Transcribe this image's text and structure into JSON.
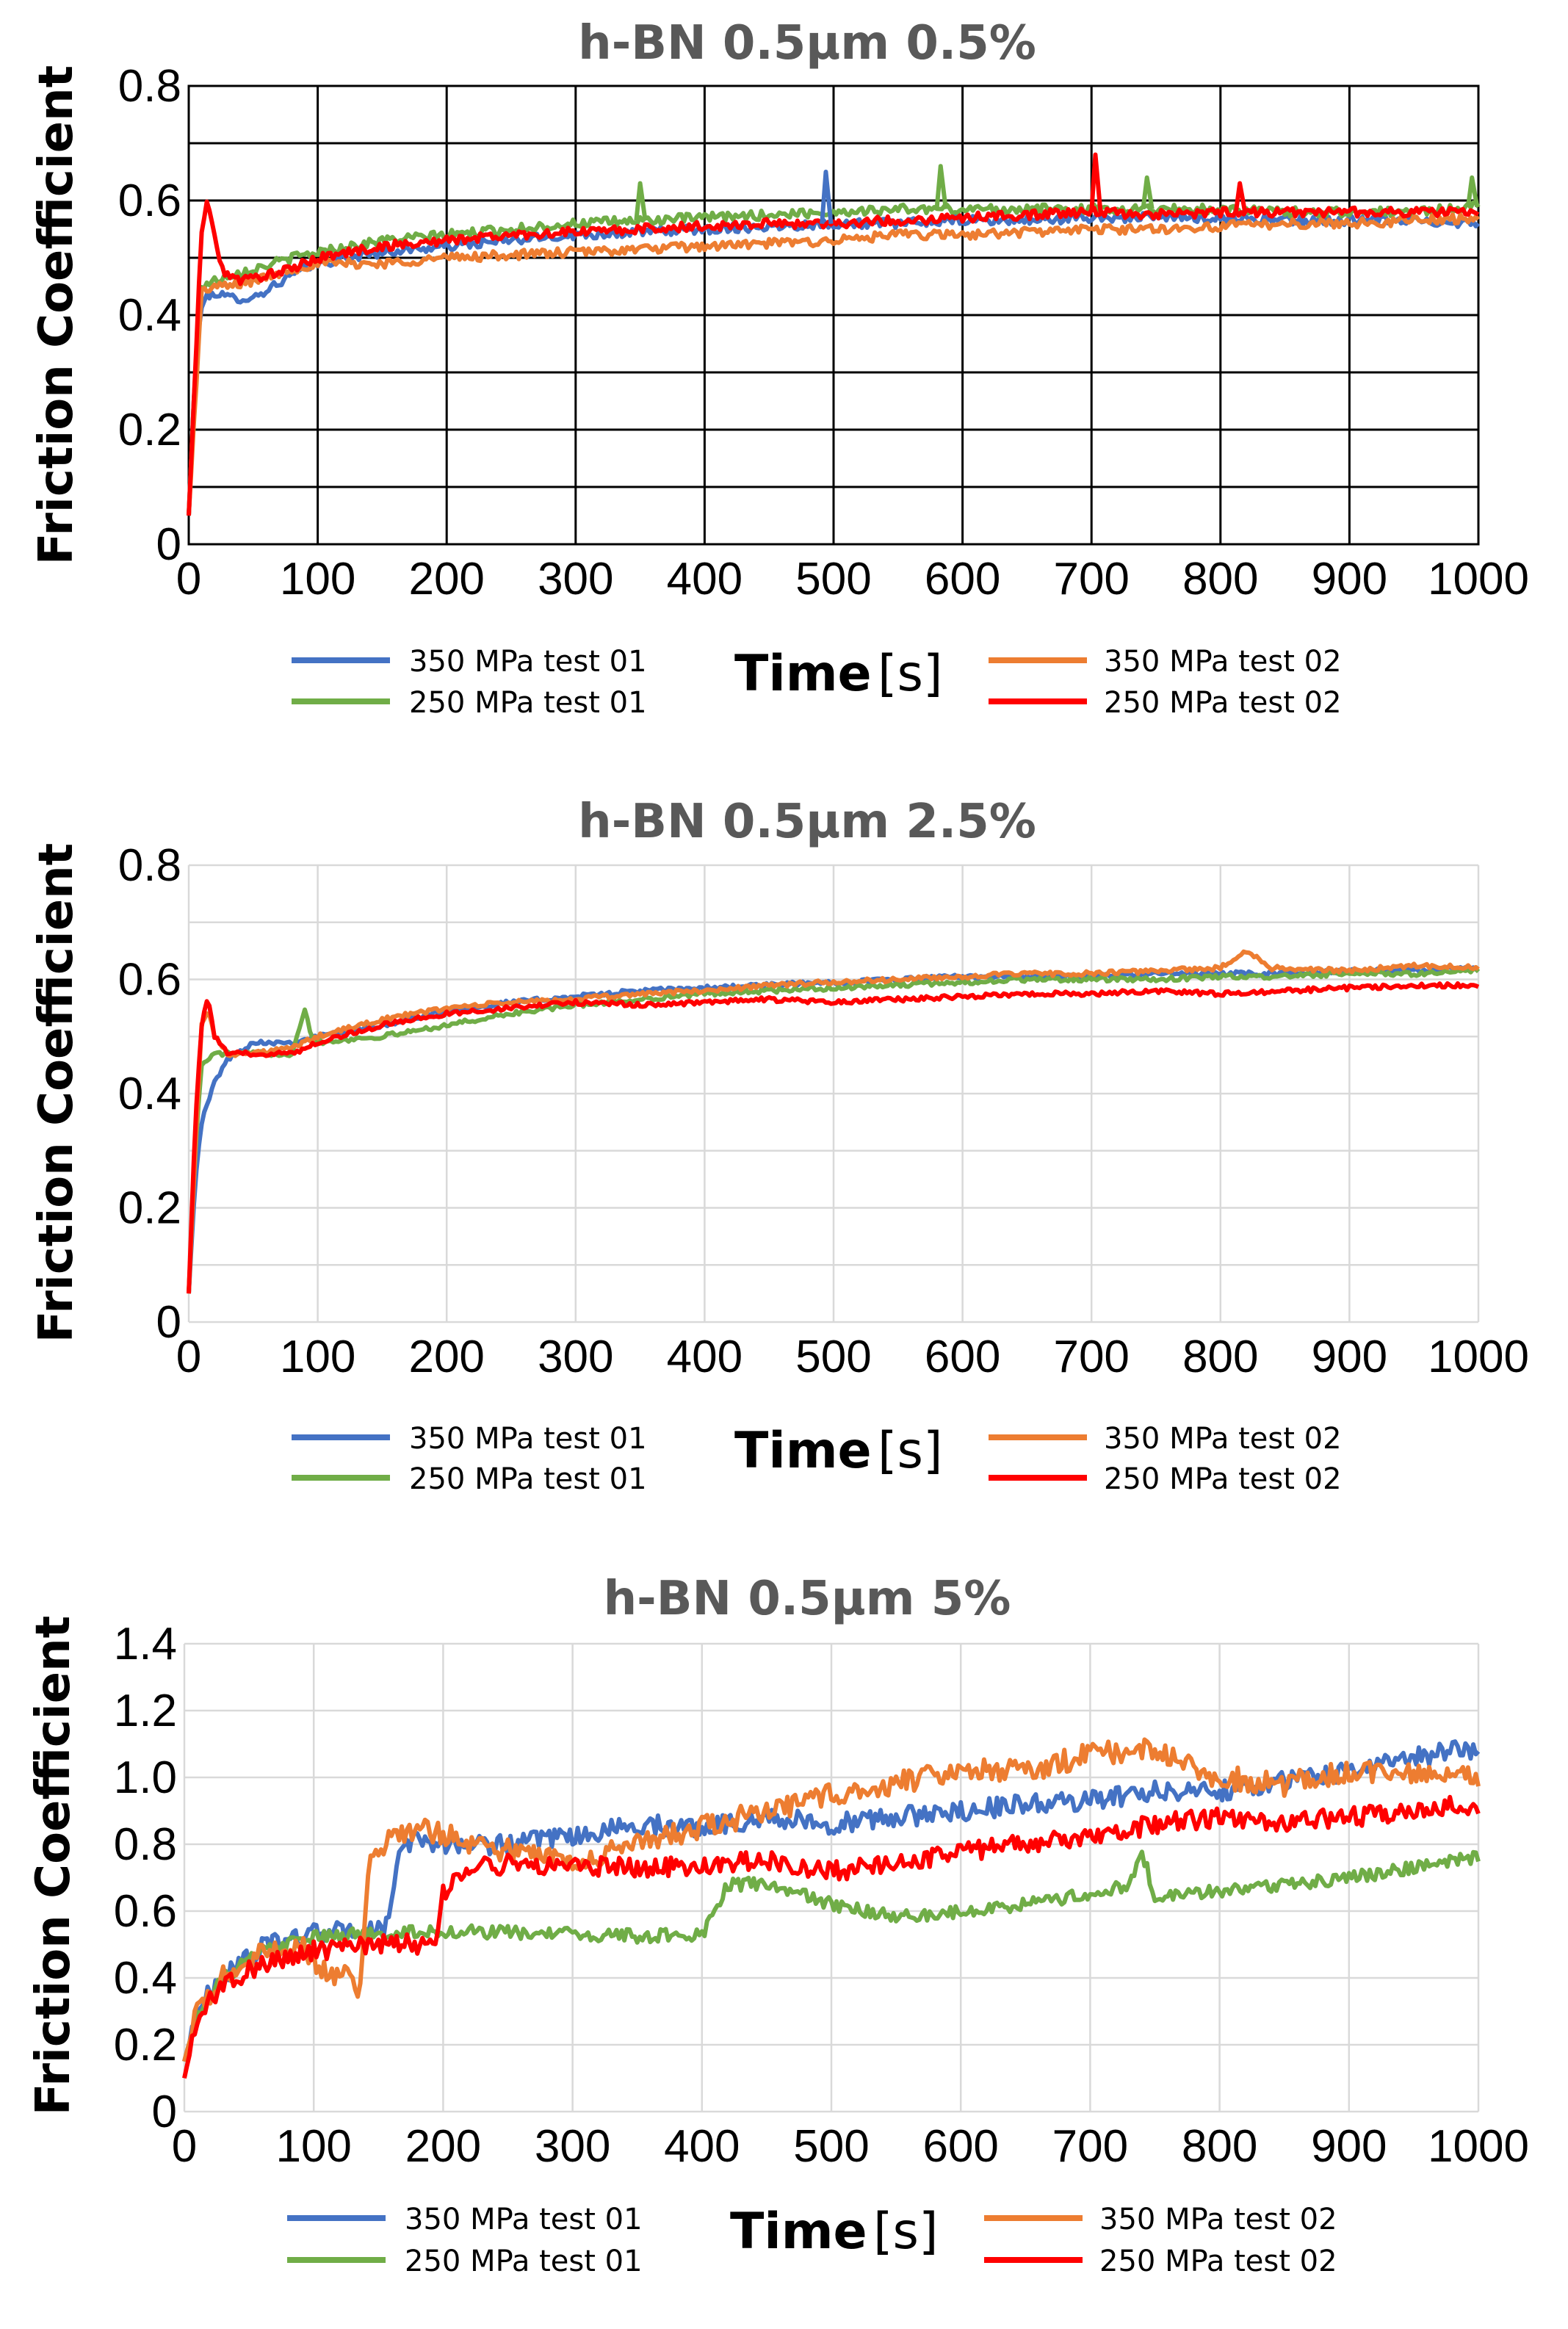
{
  "colors": {
    "series_blue": "#4472C4",
    "series_green": "#70AD47",
    "series_orange": "#ED7D31",
    "series_red": "#FF0000",
    "title_gray": "#595959",
    "grid_black": "#000000",
    "grid_light": "#D9D9D9"
  },
  "chart_data": [
    {
      "type": "line",
      "title": "h-BN 0.5µm 0.5%",
      "ylabel": "Friction Coefficient",
      "xlabel_main": "Time",
      "xlabel_unit": "[s]",
      "xlim": [
        0,
        1000
      ],
      "ylim": [
        0,
        0.8
      ],
      "xticks": [
        0,
        100,
        200,
        300,
        400,
        500,
        600,
        700,
        800,
        900,
        1000
      ],
      "xtick_labels": [
        "0",
        "100",
        "200",
        "300",
        "400",
        "500",
        "600",
        "700",
        "800",
        "900",
        "1000"
      ],
      "yticks": [
        0,
        0.2,
        0.4,
        0.6,
        0.8
      ],
      "ytick_labels": [
        "0",
        "0.2",
        "0.4",
        "0.6",
        "0.8"
      ],
      "ygrid": [
        0,
        0.1,
        0.2,
        0.3,
        0.4,
        0.5,
        0.6,
        0.7,
        0.8
      ],
      "grid_style": "black",
      "legend": [
        {
          "label": "350 MPa test 01",
          "color": "#4472C4"
        },
        {
          "label": "250 MPa test 01",
          "color": "#70AD47"
        },
        {
          "label": "350 MPa test 02",
          "color": "#ED7D31"
        },
        {
          "label": "250 MPa test 02",
          "color": "#FF0000"
        }
      ],
      "series": [
        {
          "name": "350 MPa test 01",
          "color": "#4472C4",
          "x": [
            0,
            5,
            10,
            20,
            30,
            50,
            80,
            100,
            150,
            200,
            250,
            300,
            350,
            400,
            450,
            500,
            550,
            600,
            650,
            700,
            750,
            800,
            850,
            900,
            950,
            1000
          ],
          "y": [
            0.05,
            0.3,
            0.42,
            0.44,
            0.43,
            0.43,
            0.47,
            0.49,
            0.51,
            0.52,
            0.53,
            0.54,
            0.545,
            0.55,
            0.555,
            0.56,
            0.56,
            0.565,
            0.565,
            0.57,
            0.57,
            0.57,
            0.565,
            0.565,
            0.565,
            0.56
          ],
          "noise": 0.008
        },
        {
          "name": "250 MPa test 01",
          "color": "#70AD47",
          "x": [
            0,
            5,
            10,
            20,
            30,
            50,
            80,
            100,
            150,
            200,
            250,
            300,
            350,
            400,
            450,
            500,
            550,
            600,
            650,
            700,
            750,
            800,
            850,
            900,
            950,
            1000
          ],
          "y": [
            0.05,
            0.3,
            0.45,
            0.46,
            0.47,
            0.48,
            0.5,
            0.51,
            0.53,
            0.54,
            0.55,
            0.56,
            0.565,
            0.57,
            0.575,
            0.58,
            0.585,
            0.585,
            0.585,
            0.585,
            0.585,
            0.585,
            0.58,
            0.58,
            0.58,
            0.59
          ],
          "noise": 0.008
        },
        {
          "name": "350 MPa test 02",
          "color": "#ED7D31",
          "x": [
            0,
            5,
            10,
            20,
            30,
            50,
            80,
            100,
            150,
            200,
            250,
            300,
            350,
            400,
            450,
            500,
            550,
            600,
            650,
            700,
            750,
            800,
            850,
            900,
            950,
            1000
          ],
          "y": [
            0.05,
            0.25,
            0.44,
            0.45,
            0.45,
            0.46,
            0.48,
            0.49,
            0.49,
            0.5,
            0.505,
            0.51,
            0.515,
            0.52,
            0.525,
            0.53,
            0.54,
            0.54,
            0.545,
            0.55,
            0.55,
            0.555,
            0.56,
            0.56,
            0.565,
            0.57
          ],
          "noise": 0.008
        },
        {
          "name": "250 MPa test 02",
          "color": "#FF0000",
          "x": [
            0,
            5,
            10,
            15,
            25,
            40,
            60,
            80,
            100,
            150,
            200,
            250,
            300,
            350,
            400,
            450,
            500,
            550,
            600,
            650,
            700,
            750,
            800,
            850,
            900,
            950,
            1000
          ],
          "y": [
            0.05,
            0.3,
            0.55,
            0.6,
            0.48,
            0.46,
            0.47,
            0.48,
            0.5,
            0.52,
            0.53,
            0.54,
            0.545,
            0.55,
            0.555,
            0.56,
            0.56,
            0.565,
            0.57,
            0.575,
            0.58,
            0.575,
            0.58,
            0.58,
            0.58,
            0.58,
            0.58
          ],
          "noise": 0.008
        }
      ],
      "annotations": [
        {
          "series": 3,
          "x": 703,
          "y": 0.68
        },
        {
          "series": 3,
          "x": 815,
          "y": 0.63
        },
        {
          "series": 1,
          "x": 583,
          "y": 0.66
        },
        {
          "series": 1,
          "x": 743,
          "y": 0.64
        },
        {
          "series": 1,
          "x": 350,
          "y": 0.63
        },
        {
          "series": 0,
          "x": 494,
          "y": 0.65
        },
        {
          "series": 1,
          "x": 995,
          "y": 0.64
        }
      ]
    },
    {
      "type": "line",
      "title": "h-BN 0.5µm 2.5%",
      "ylabel": "Friction Coefficient",
      "xlabel_main": "Time",
      "xlabel_unit": "[s]",
      "xlim": [
        0,
        1000
      ],
      "ylim": [
        0,
        0.8
      ],
      "xticks": [
        0,
        100,
        200,
        300,
        400,
        500,
        600,
        700,
        800,
        900,
        1000
      ],
      "xtick_labels": [
        "0",
        "100",
        "200",
        "300",
        "400",
        "500",
        "600",
        "700",
        "800",
        "900",
        "1000"
      ],
      "yticks": [
        0,
        0.2,
        0.4,
        0.6,
        0.8
      ],
      "ytick_labels": [
        "0",
        "0.2",
        "0.4",
        "0.6",
        "0.8"
      ],
      "ygrid": [
        0,
        0.1,
        0.2,
        0.3,
        0.4,
        0.5,
        0.6,
        0.7,
        0.8
      ],
      "grid_style": "light",
      "legend": [
        {
          "label": "350 MPa test 01",
          "color": "#4472C4"
        },
        {
          "label": "250 MPa test 01",
          "color": "#70AD47"
        },
        {
          "label": "350 MPa test 02",
          "color": "#ED7D31"
        },
        {
          "label": "250 MPa test 02",
          "color": "#FF0000"
        }
      ],
      "series": [
        {
          "name": "350 MPa test 01",
          "color": "#4472C4",
          "x": [
            0,
            5,
            10,
            20,
            30,
            50,
            80,
            100,
            150,
            200,
            250,
            300,
            350,
            400,
            450,
            500,
            550,
            600,
            650,
            700,
            750,
            800,
            850,
            900,
            950,
            1000
          ],
          "y": [
            0.05,
            0.25,
            0.35,
            0.42,
            0.46,
            0.49,
            0.49,
            0.5,
            0.52,
            0.545,
            0.56,
            0.57,
            0.58,
            0.585,
            0.59,
            0.595,
            0.6,
            0.605,
            0.605,
            0.605,
            0.61,
            0.61,
            0.61,
            0.615,
            0.615,
            0.62
          ],
          "noise": 0.004
        },
        {
          "name": "250 MPa test 01",
          "color": "#70AD47",
          "x": [
            0,
            5,
            10,
            20,
            30,
            50,
            80,
            90,
            95,
            100,
            150,
            200,
            250,
            300,
            350,
            400,
            450,
            500,
            550,
            600,
            650,
            700,
            750,
            800,
            850,
            900,
            950,
            1000
          ],
          "y": [
            0.05,
            0.3,
            0.45,
            0.47,
            0.47,
            0.47,
            0.47,
            0.55,
            0.5,
            0.49,
            0.5,
            0.52,
            0.54,
            0.555,
            0.565,
            0.575,
            0.58,
            0.585,
            0.59,
            0.595,
            0.6,
            0.6,
            0.6,
            0.605,
            0.605,
            0.61,
            0.61,
            0.615
          ],
          "noise": 0.004
        },
        {
          "name": "350 MPa test 02",
          "color": "#ED7D31",
          "x": [
            0,
            5,
            10,
            15,
            20,
            30,
            50,
            80,
            100,
            150,
            200,
            250,
            300,
            350,
            400,
            450,
            500,
            550,
            600,
            650,
            700,
            750,
            800,
            820,
            840,
            900,
            950,
            1000
          ],
          "y": [
            0.05,
            0.3,
            0.52,
            0.55,
            0.5,
            0.47,
            0.47,
            0.48,
            0.5,
            0.53,
            0.55,
            0.56,
            0.565,
            0.575,
            0.58,
            0.59,
            0.595,
            0.6,
            0.605,
            0.61,
            0.61,
            0.615,
            0.62,
            0.65,
            0.62,
            0.615,
            0.625,
            0.62
          ],
          "noise": 0.004
        },
        {
          "name": "250 MPa test 02",
          "color": "#FF0000",
          "x": [
            0,
            5,
            10,
            15,
            20,
            30,
            50,
            80,
            100,
            150,
            200,
            250,
            300,
            350,
            400,
            450,
            500,
            550,
            600,
            650,
            700,
            750,
            800,
            850,
            900,
            950,
            1000
          ],
          "y": [
            0.05,
            0.35,
            0.52,
            0.57,
            0.5,
            0.47,
            0.47,
            0.47,
            0.49,
            0.52,
            0.54,
            0.55,
            0.56,
            0.555,
            0.56,
            0.565,
            0.56,
            0.565,
            0.57,
            0.575,
            0.575,
            0.58,
            0.575,
            0.58,
            0.585,
            0.59,
            0.59
          ],
          "noise": 0.004
        }
      ],
      "annotations": []
    },
    {
      "type": "line",
      "title": "h-BN 0.5µm 5%",
      "ylabel": "Friction Coefficient",
      "xlabel_main": "Time",
      "xlabel_unit": "[s]",
      "xlim": [
        0,
        1000
      ],
      "ylim": [
        0,
        1.4
      ],
      "xticks": [
        0,
        100,
        200,
        300,
        400,
        500,
        600,
        700,
        800,
        900,
        1000
      ],
      "xtick_labels": [
        "0",
        "100",
        "200",
        "300",
        "400",
        "500",
        "600",
        "700",
        "800",
        "900",
        "1000"
      ],
      "yticks": [
        0,
        0.2,
        0.4,
        0.6,
        0.8,
        1.0,
        1.2,
        1.4
      ],
      "ytick_labels": [
        "0",
        "0.2",
        "0.4",
        "0.6",
        "0.8",
        "1.0",
        "1.2",
        "1.4"
      ],
      "ygrid": [
        0,
        0.2,
        0.4,
        0.6,
        0.8,
        1.0,
        1.2,
        1.4
      ],
      "grid_style": "light",
      "legend": [
        {
          "label": "350 MPa test 01",
          "color": "#4472C4"
        },
        {
          "label": "250 MPa test 01",
          "color": "#70AD47"
        },
        {
          "label": "350 MPa test 02",
          "color": "#ED7D31"
        },
        {
          "label": "250 MPa test 02",
          "color": "#FF0000"
        }
      ],
      "series": [
        {
          "name": "350 MPa test 01",
          "color": "#4472C4",
          "x": [
            0,
            10,
            30,
            60,
            100,
            130,
            155,
            160,
            165,
            180,
            200,
            250,
            300,
            350,
            400,
            450,
            500,
            550,
            600,
            650,
            700,
            750,
            800,
            850,
            900,
            950,
            1000
          ],
          "y": [
            0.15,
            0.3,
            0.41,
            0.49,
            0.535,
            0.54,
            0.545,
            0.6,
            0.78,
            0.82,
            0.8,
            0.8,
            0.82,
            0.86,
            0.85,
            0.88,
            0.86,
            0.88,
            0.9,
            0.92,
            0.93,
            0.96,
            0.96,
            0.99,
            1.02,
            1.06,
            1.09
          ],
          "noise": 0.03
        },
        {
          "name": "250 MPa test 01",
          "color": "#70AD47",
          "x": [
            0,
            10,
            30,
            60,
            100,
            150,
            200,
            250,
            300,
            350,
            400,
            410,
            420,
            450,
            500,
            550,
            600,
            650,
            700,
            730,
            740,
            750,
            800,
            850,
            900,
            950,
            1000
          ],
          "y": [
            0.15,
            0.3,
            0.4,
            0.48,
            0.52,
            0.535,
            0.54,
            0.535,
            0.53,
            0.525,
            0.53,
            0.6,
            0.68,
            0.68,
            0.62,
            0.58,
            0.6,
            0.62,
            0.65,
            0.68,
            0.78,
            0.64,
            0.66,
            0.68,
            0.7,
            0.73,
            0.76
          ],
          "noise": 0.02
        },
        {
          "name": "350 MPa test 02",
          "color": "#ED7D31",
          "x": [
            0,
            10,
            30,
            60,
            90,
            100,
            110,
            125,
            135,
            140,
            145,
            160,
            180,
            200,
            250,
            300,
            350,
            400,
            450,
            500,
            550,
            600,
            650,
            700,
            750,
            800,
            850,
            900,
            950,
            1000
          ],
          "y": [
            0.15,
            0.3,
            0.4,
            0.47,
            0.5,
            0.45,
            0.42,
            0.4,
            0.37,
            0.6,
            0.78,
            0.82,
            0.85,
            0.83,
            0.78,
            0.75,
            0.8,
            0.85,
            0.9,
            0.95,
            0.98,
            1.03,
            1.02,
            1.07,
            1.08,
            1.0,
            0.98,
            1.02,
            1.01,
            1.0
          ],
          "noise": 0.035
        },
        {
          "name": "250 MPa test 02",
          "color": "#FF0000",
          "x": [
            0,
            10,
            30,
            60,
            100,
            150,
            195,
            200,
            210,
            250,
            300,
            350,
            400,
            450,
            500,
            550,
            600,
            650,
            700,
            750,
            800,
            850,
            900,
            950,
            1000
          ],
          "y": [
            0.1,
            0.28,
            0.38,
            0.44,
            0.48,
            0.5,
            0.5,
            0.65,
            0.72,
            0.74,
            0.74,
            0.73,
            0.74,
            0.75,
            0.72,
            0.74,
            0.78,
            0.8,
            0.82,
            0.86,
            0.88,
            0.87,
            0.88,
            0.9,
            0.92
          ],
          "noise": 0.03
        }
      ],
      "annotations": []
    }
  ]
}
